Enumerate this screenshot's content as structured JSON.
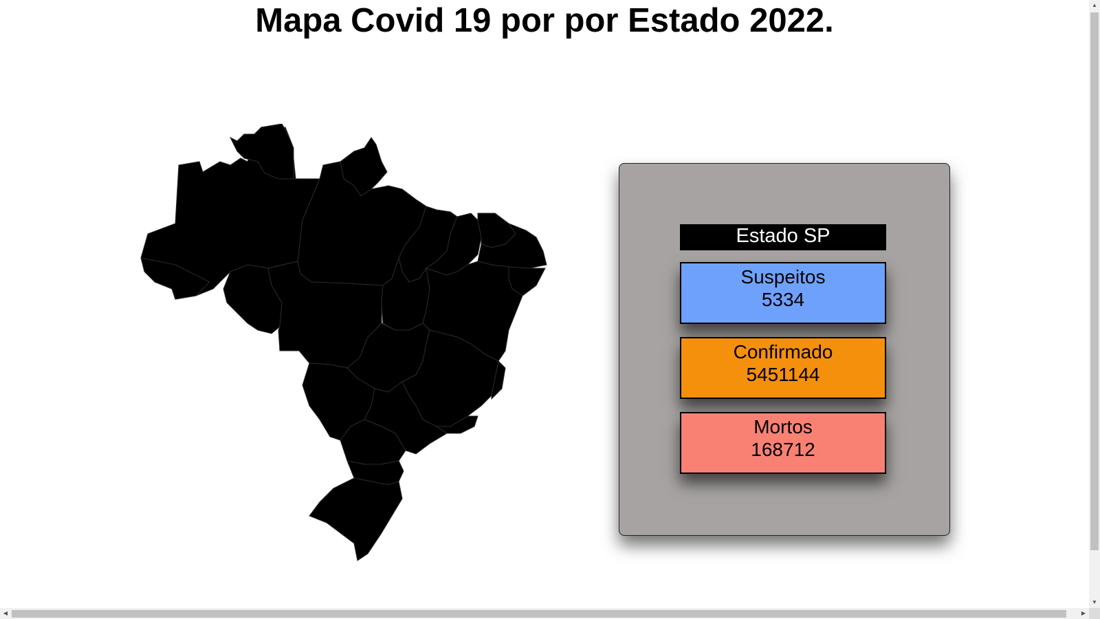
{
  "page": {
    "title": "Mapa Covid 19 por por Estado 2022."
  },
  "map": {
    "icon": "brazil-states-map",
    "fill_color": "#000000"
  },
  "panel": {
    "state_label": "Estado SP",
    "stats": {
      "suspeitos": {
        "label": "Suspeitos",
        "value": "5334",
        "color": "#6ea1fb"
      },
      "confirmado": {
        "label": "Confirmado",
        "value": "5451144",
        "color": "#f5900d"
      },
      "mortos": {
        "label": "Mortos",
        "value": "168712",
        "color": "#f98174"
      }
    }
  },
  "scrollbars": {
    "up_arrow": "▲",
    "down_arrow": "▼",
    "left_arrow": "◀",
    "right_arrow": "▶"
  }
}
